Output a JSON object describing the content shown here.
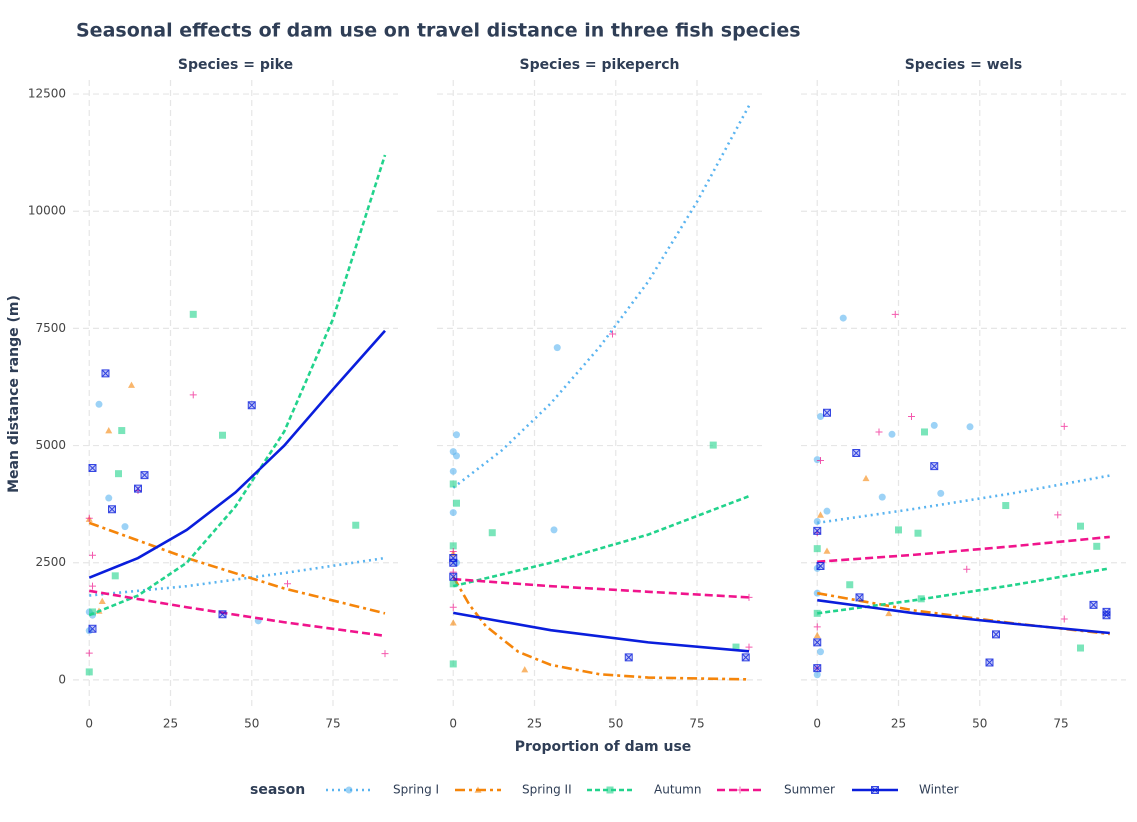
{
  "chart_data": {
    "type": "scatter",
    "title": "Seasonal effects of dam use on travel distance in three fish species",
    "x_label": "Proportion of dam use",
    "y_label": "Mean distance range (m)",
    "legend_title": "season",
    "legend": "bottom",
    "grid": true,
    "xlim": [
      -5,
      95
    ],
    "ylim": [
      -600,
      12800
    ],
    "xticks": [
      0,
      25,
      50,
      75
    ],
    "yticks": [
      0,
      2500,
      5000,
      7500,
      10000,
      12500
    ],
    "series": [
      {
        "name": "Spring I",
        "color": "#5ab4f0",
        "marker": "circle",
        "dash": "dotted"
      },
      {
        "name": "Spring II",
        "color": "#f5850a",
        "marker": "triangle",
        "dash": "dashdot"
      },
      {
        "name": "Autumn",
        "color": "#22d38c",
        "marker": "square",
        "dash": "dashed"
      },
      {
        "name": "Summer",
        "color": "#f0148c",
        "marker": "plus",
        "dash": "longdash"
      },
      {
        "name": "Winter",
        "color": "#0a1edc",
        "marker": "boxx",
        "dash": "solid"
      }
    ],
    "facets": [
      {
        "title": "Species = pike",
        "groups": [
          {
            "x": [
              3,
              6,
              11,
              0,
              0,
              52,
              1
            ],
            "values": [
              5880,
              3880,
              3270,
              1450,
              1050,
              1260,
              1380
            ],
            "fit_x": [
              0,
              30,
              60,
              91
            ],
            "fit_values": [
              1800,
              2000,
              2280,
              2600
            ]
          },
          {
            "x": [
              13,
              6,
              3,
              4,
              0
            ],
            "values": [
              6290,
              5320,
              1470,
              1680,
              3430
            ],
            "fit_x": [
              0,
              30,
              60,
              91
            ],
            "fit_values": [
              3350,
              2600,
              1950,
              1420
            ]
          },
          {
            "x": [
              32,
              10,
              9,
              41,
              82,
              8,
              0,
              1
            ],
            "values": [
              7800,
              5320,
              4400,
              5220,
              3300,
              2220,
              170,
              1450
            ],
            "fit_x": [
              0,
              15,
              30,
              45,
              60,
              75,
              91
            ],
            "fit_values": [
              1380,
              1800,
              2500,
              3700,
              5300,
              7700,
              11200
            ]
          },
          {
            "x": [
              32,
              15,
              0,
              1,
              61,
              91,
              0,
              1
            ],
            "values": [
              6080,
              4040,
              3450,
              2660,
              2050,
              560,
              570,
              2000
            ],
            "fit_x": [
              0,
              30,
              60,
              91
            ],
            "fit_values": [
              1900,
              1550,
              1230,
              940
            ]
          },
          {
            "x": [
              5,
              50,
              1,
              17,
              15,
              7,
              41,
              1
            ],
            "values": [
              6540,
              5860,
              4520,
              4370,
              4080,
              3640,
              1400,
              1090
            ],
            "fit_x": [
              0,
              15,
              30,
              45,
              60,
              75,
              91
            ],
            "fit_values": [
              2180,
              2600,
              3200,
              4000,
              5000,
              6200,
              7450
            ]
          }
        ]
      },
      {
        "title": "Species = pikeperch",
        "groups": [
          {
            "x": [
              1,
              0,
              1,
              0,
              0,
              32,
              31,
              1
            ],
            "values": [
              5230,
              4870,
              4780,
              4450,
              3570,
              7090,
              3200,
              2500
            ],
            "fit_x": [
              0,
              15,
              30,
              45,
              60,
              75,
              91
            ],
            "fit_values": [
              4100,
              4900,
              5900,
              7100,
              8500,
              10200,
              12250
            ]
          },
          {
            "x": [
              0,
              22,
              0
            ],
            "values": [
              1220,
              220,
              2700
            ],
            "fit_x": [
              0,
              5,
              10,
              20,
              30,
              45,
              60,
              91
            ],
            "fit_values": [
              2200,
              1600,
              1150,
              600,
              320,
              120,
              50,
              10
            ]
          },
          {
            "x": [
              80,
              1,
              12,
              0,
              0,
              0,
              87,
              0
            ],
            "values": [
              5010,
              3770,
              3140,
              2860,
              4180,
              340,
              700,
              2050
            ],
            "fit_x": [
              0,
              30,
              60,
              91
            ],
            "fit_values": [
              2000,
              2500,
              3100,
              3920
            ]
          },
          {
            "x": [
              49,
              0,
              0,
              91,
              91,
              0
            ],
            "values": [
              7380,
              2740,
              1550,
              1760,
              700,
              2300
            ],
            "fit_x": [
              0,
              30,
              60,
              91
            ],
            "fit_values": [
              2150,
              2000,
              1880,
              1760
            ]
          },
          {
            "x": [
              0,
              0,
              0,
              54,
              90
            ],
            "values": [
              2600,
              2500,
              2200,
              480,
              480
            ],
            "fit_x": [
              0,
              30,
              60,
              91
            ],
            "fit_values": [
              1430,
              1060,
              800,
              610
            ]
          }
        ]
      },
      {
        "title": "Species = wels",
        "groups": [
          {
            "x": [
              8,
              1,
              36,
              47,
              23,
              0,
              3,
              20,
              38,
              0,
              0,
              0,
              1,
              0
            ],
            "values": [
              7720,
              5620,
              5430,
              5400,
              5240,
              4700,
              3600,
              3900,
              3980,
              3380,
              2380,
              1850,
              600,
              110
            ],
            "fit_x": [
              0,
              30,
              60,
              90
            ],
            "fit_values": [
              3350,
              3650,
              3980,
              4360
            ]
          },
          {
            "x": [
              15,
              3,
              1,
              22,
              0
            ],
            "values": [
              4300,
              2750,
              3520,
              1420,
              950
            ],
            "fit_x": [
              0,
              30,
              60,
              90
            ],
            "fit_values": [
              1850,
              1480,
              1210,
              980
            ]
          },
          {
            "x": [
              33,
              58,
              25,
              31,
              81,
              86,
              10,
              0,
              32,
              81,
              0
            ],
            "values": [
              5290,
              3720,
              3200,
              3130,
              3280,
              2850,
              2030,
              2800,
              1730,
              680,
              1420
            ],
            "fit_x": [
              0,
              30,
              60,
              90
            ],
            "fit_values": [
              1420,
              1700,
              2020,
              2380
            ]
          },
          {
            "x": [
              24,
              29,
              19,
              1,
              74,
              76,
              46,
              0,
              76,
              0,
              0
            ],
            "values": [
              7800,
              5620,
              5290,
              4680,
              3520,
              5410,
              2360,
              3140,
              1300,
              1130,
              250
            ],
            "fit_x": [
              0,
              30,
              60,
              90
            ],
            "fit_values": [
              2520,
              2670,
              2850,
              3050
            ]
          },
          {
            "x": [
              3,
              12,
              36,
              1,
              13,
              85,
              89,
              89,
              55,
              53,
              0,
              0,
              0
            ],
            "values": [
              5700,
              4840,
              4560,
              2430,
              1760,
              1600,
              1450,
              1380,
              970,
              370,
              800,
              250,
              3180
            ],
            "fit_x": [
              0,
              30,
              60,
              90
            ],
            "fit_values": [
              1700,
              1420,
              1200,
              1000
            ]
          }
        ]
      }
    ]
  }
}
